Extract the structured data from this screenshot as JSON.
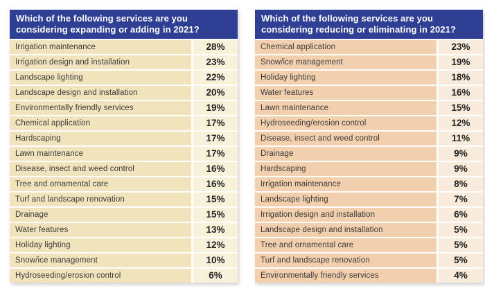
{
  "tables": [
    {
      "title": "Which of the following services are you considering expanding or adding in 2021?",
      "rows": [
        {
          "label": "Irrigation maintenance",
          "value": "28%"
        },
        {
          "label": "Irrigation design and installation",
          "value": "23%"
        },
        {
          "label": "Landscape lighting",
          "value": "22%"
        },
        {
          "label": "Landscape design and installation",
          "value": "20%"
        },
        {
          "label": "Environmentally friendly services",
          "value": "19%"
        },
        {
          "label": "Chemical application",
          "value": "17%"
        },
        {
          "label": "Hardscaping",
          "value": "17%"
        },
        {
          "label": "Lawn maintenance",
          "value": "17%"
        },
        {
          "label": "Disease, insect and weed control",
          "value": "16%"
        },
        {
          "label": "Tree and ornamental care",
          "value": "16%"
        },
        {
          "label": "Turf and landscape renovation",
          "value": "15%"
        },
        {
          "label": "Drainage",
          "value": "15%"
        },
        {
          "label": "Water features",
          "value": "13%"
        },
        {
          "label": "Holiday lighting",
          "value": "12%"
        },
        {
          "label": "Snow/ice management",
          "value": "10%"
        },
        {
          "label": "Hydroseeding/erosion control",
          "value": "6%"
        }
      ]
    },
    {
      "title": "Which of the following services are you considering reducing or eliminating in 2021?",
      "rows": [
        {
          "label": "Chemical application",
          "value": "23%"
        },
        {
          "label": "Snow/ice management",
          "value": "19%"
        },
        {
          "label": "Holiday lighting",
          "value": "18%"
        },
        {
          "label": "Water features",
          "value": "16%"
        },
        {
          "label": "Lawn maintenance",
          "value": "15%"
        },
        {
          "label": "Hydroseeding/erosion control",
          "value": "12%"
        },
        {
          "label": "Disease, insect and weed control",
          "value": "11%"
        },
        {
          "label": "Drainage",
          "value": "9%"
        },
        {
          "label": "Hardscaping",
          "value": "9%"
        },
        {
          "label": "Irrigation maintenance",
          "value": "8%"
        },
        {
          "label": "Landscape lighting",
          "value": "7%"
        },
        {
          "label": "Irrigation design and installation",
          "value": "6%"
        },
        {
          "label": "Landscape design and installation",
          "value": "5%"
        },
        {
          "label": "Tree and ornamental care",
          "value": "5%"
        },
        {
          "label": "Turf and landscape renovation",
          "value": "5%"
        },
        {
          "label": "Environmentally friendly services",
          "value": "4%"
        }
      ]
    }
  ],
  "chart_data": [
    {
      "type": "table",
      "title": "Which of the following services are you considering expanding or adding in 2021?",
      "categories": [
        "Irrigation maintenance",
        "Irrigation design and installation",
        "Landscape lighting",
        "Landscape design and installation",
        "Environmentally friendly services",
        "Chemical application",
        "Hardscaping",
        "Lawn maintenance",
        "Disease, insect and weed control",
        "Tree and ornamental care",
        "Turf and landscape renovation",
        "Drainage",
        "Water features",
        "Holiday lighting",
        "Snow/ice management",
        "Hydroseeding/erosion control"
      ],
      "values": [
        28,
        23,
        22,
        20,
        19,
        17,
        17,
        17,
        16,
        16,
        15,
        15,
        13,
        12,
        10,
        6
      ],
      "unit": "%"
    },
    {
      "type": "table",
      "title": "Which of the following services are you considering reducing or eliminating in 2021?",
      "categories": [
        "Chemical application",
        "Snow/ice management",
        "Holiday lighting",
        "Water features",
        "Lawn maintenance",
        "Hydroseeding/erosion control",
        "Disease, insect and weed control",
        "Drainage",
        "Hardscaping",
        "Irrigation maintenance",
        "Landscape lighting",
        "Irrigation design and installation",
        "Landscape design and installation",
        "Tree and ornamental care",
        "Turf and landscape renovation",
        "Environmentally friendly services"
      ],
      "values": [
        23,
        19,
        18,
        16,
        15,
        12,
        11,
        9,
        9,
        8,
        7,
        6,
        5,
        5,
        5,
        4
      ],
      "unit": "%"
    }
  ],
  "colors": {
    "header_bg": "#2F3F94",
    "header_text": "#FFFFFF",
    "left_label_bg": "#F1E3BB",
    "left_value_bg": "#F8F1DA",
    "right_label_bg": "#F2CFAD",
    "right_value_bg": "#F8EBDB",
    "label_text": "#3B3B3B",
    "value_text": "#222222"
  }
}
